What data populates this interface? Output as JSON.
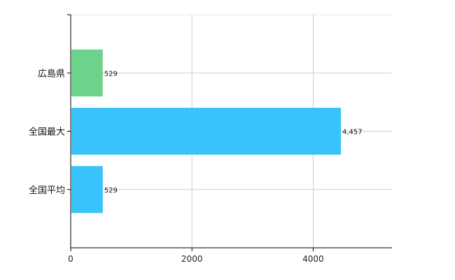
{
  "chart_data": {
    "type": "bar",
    "orientation": "horizontal",
    "categories": [
      "広島県",
      "全国最大",
      "全国平均"
    ],
    "values": [
      529,
      4457,
      529
    ],
    "value_labels": [
      "529",
      "4,457",
      "529"
    ],
    "colors": [
      "#6dd38a",
      "#38c3fa",
      "#38c3fa"
    ],
    "xlim": [
      0,
      5300
    ],
    "xticks": [
      0,
      2000,
      4000
    ],
    "xtick_labels": [
      "0",
      "2000",
      "4000"
    ],
    "grid": true,
    "legend": "none"
  }
}
